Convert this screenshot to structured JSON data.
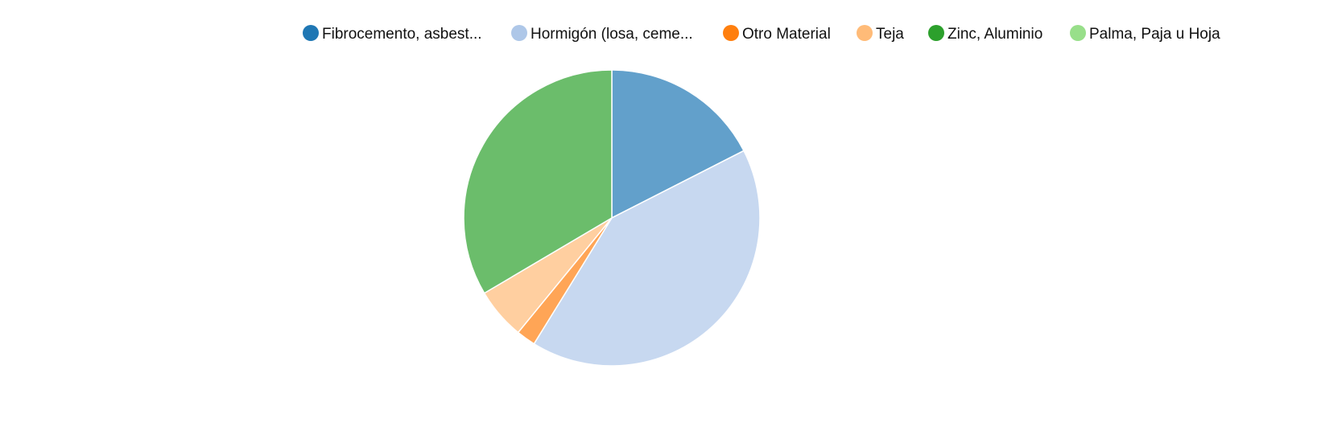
{
  "chart_data": {
    "type": "pie",
    "title": "",
    "legend_position": "top",
    "slices": [
      {
        "label": "Fibrocemento, asbest...",
        "value": 17.5,
        "legend_color": "#1f77b4",
        "slice_color": "#62a0cb"
      },
      {
        "label": "Hormigón (losa, ceme...",
        "value": 41.3,
        "legend_color": "#aec7e8",
        "slice_color": "#c7d8f0"
      },
      {
        "label": "Otro Material",
        "value": 2.1,
        "legend_color": "#ff7f0e",
        "slice_color": "#ffa556"
      },
      {
        "label": "Teja",
        "value": 5.6,
        "legend_color": "#ffbb78",
        "slice_color": "#ffcfa0"
      },
      {
        "label": "Zinc, Aluminio",
        "value": 33.5,
        "legend_color": "#2ca02c",
        "slice_color": "#6bbd6b"
      },
      {
        "label": "Palma, Paja u Hoja",
        "value": 0.0,
        "legend_color": "#98df8a",
        "slice_color": "#b9e9ad"
      }
    ]
  }
}
